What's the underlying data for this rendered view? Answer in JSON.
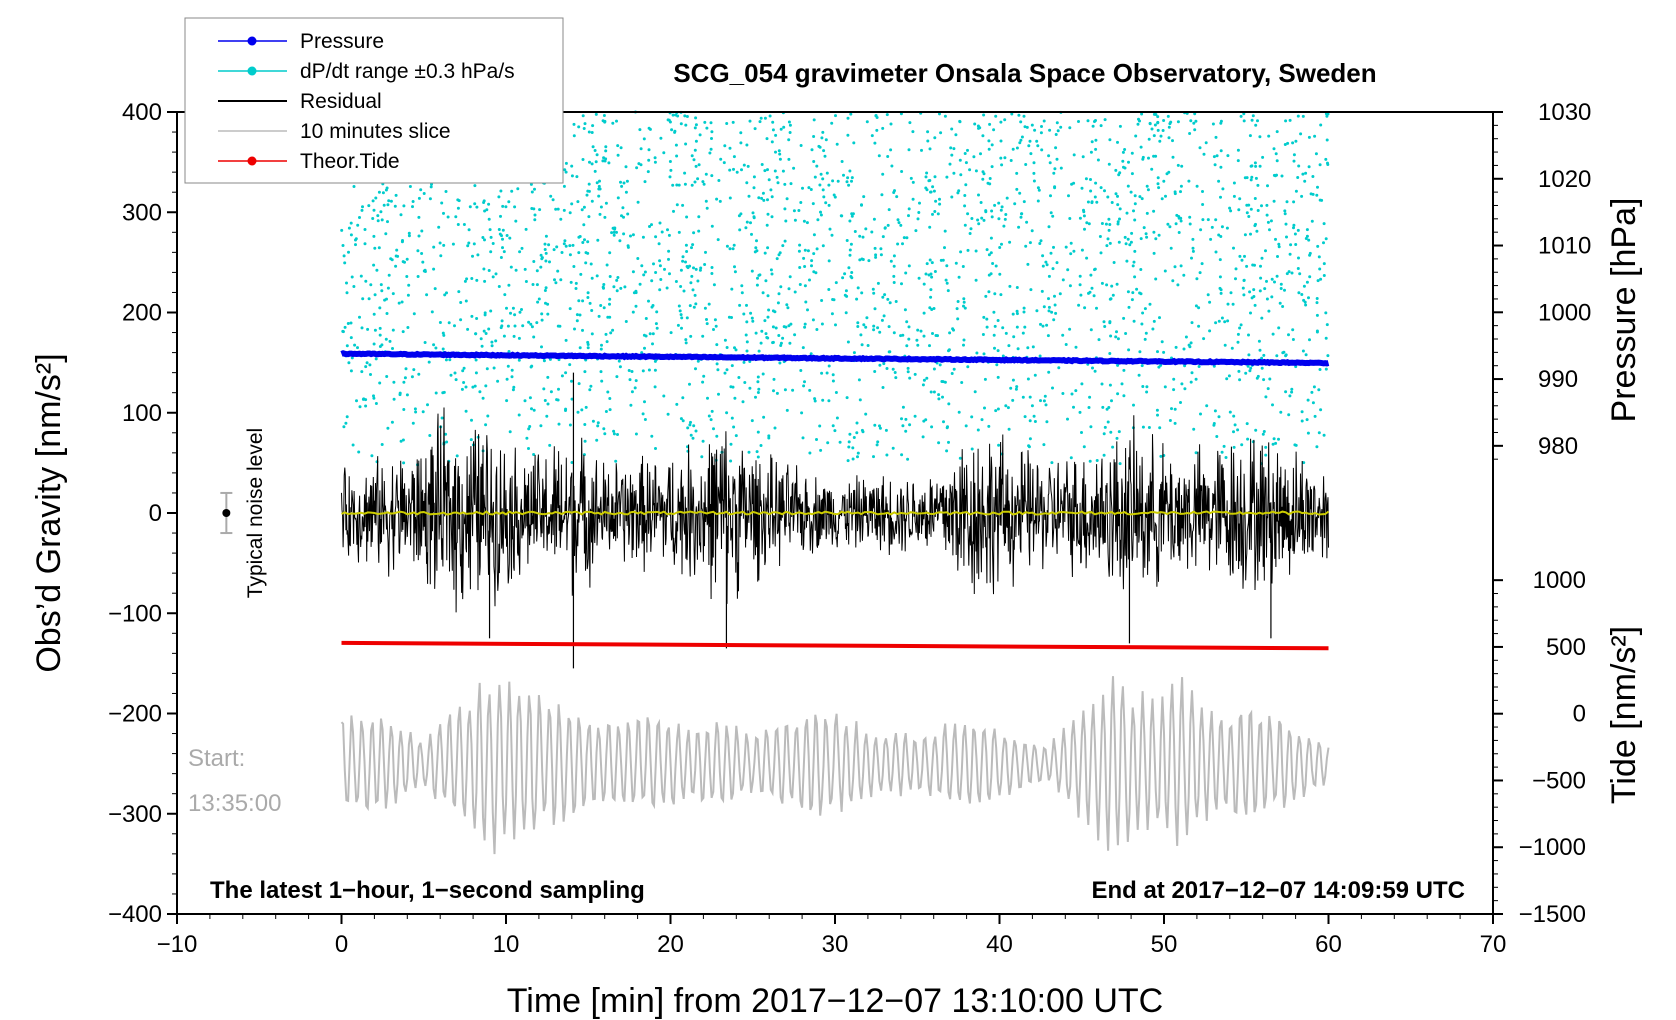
{
  "chart_data": {
    "type": "line",
    "title": "SCG_054 gravimeter Onsala Space Observatory, Sweden",
    "xlabel": "Time [min] from 2017−12−07 13:10:00 UTC",
    "ylabel_left": "Obs’d Gravity [nm/s²]",
    "ylabel_right_pressure": "Pressure [hPa]",
    "ylabel_right_tide": "Tide [nm/s²]",
    "xlim": [
      -10,
      70
    ],
    "ylim": [
      -400,
      400
    ],
    "xticks": [
      -10,
      0,
      10,
      20,
      30,
      40,
      50,
      60,
      70
    ],
    "yticks": [
      -400,
      -300,
      -200,
      -100,
      0,
      100,
      200,
      300,
      400
    ],
    "pressure_axis": {
      "range": [
        970,
        1030
      ],
      "ticks": [
        980,
        990,
        1000,
        1010,
        1020,
        1030
      ]
    },
    "tide_axis": {
      "range": [
        -1500,
        1000
      ],
      "ticks": [
        -1500,
        -1000,
        -500,
        0,
        500,
        1000
      ]
    },
    "legend": [
      {
        "label": "Pressure",
        "color": "#0000ee"
      },
      {
        "label": "dP/dt range ±0.3 hPa/s",
        "color": "#00cccc"
      },
      {
        "label": "Residual",
        "color": "#000000"
      },
      {
        "label": "10 minutes slice",
        "color": "#bbbbbb"
      },
      {
        "label": "Theor.Tide",
        "color": "#ee0000"
      }
    ],
    "legend_position": "top-left",
    "annotations": {
      "bottom_left": "The latest 1−hour, 1−second sampling",
      "bottom_right": "End at 2017−12−07 14:09:59 UTC",
      "slice_start_label": "Start:",
      "slice_start_time": "13:35:00",
      "noise_label": "Typical noise level"
    },
    "series": {
      "pressure": {
        "x": [
          0,
          60
        ],
        "pressure_hPa": [
          993.8,
          992.4
        ],
        "color": "#0000ee"
      },
      "theor_tide": {
        "x": [
          0,
          60
        ],
        "tide_nms2": [
          530,
          490
        ],
        "color": "#ee0000"
      },
      "residual": {
        "color": "#000000",
        "baseline": 0,
        "envelope_x": [
          0,
          5,
          6,
          8,
          9,
          10,
          12,
          14,
          16,
          18,
          20,
          22,
          23,
          24,
          26,
          28,
          30,
          33,
          36,
          38,
          39,
          40,
          42,
          44,
          46,
          48,
          50,
          52,
          55,
          57,
          60
        ],
        "envelope_amp": [
          50,
          80,
          110,
          110,
          100,
          85,
          70,
          95,
          60,
          65,
          70,
          85,
          110,
          95,
          65,
          50,
          40,
          45,
          50,
          100,
          105,
          90,
          70,
          65,
          85,
          100,
          80,
          75,
          95,
          85,
          55
        ],
        "spikes": [
          [
            14.1,
            140
          ],
          [
            14.1,
            -155
          ],
          [
            23.4,
            -135
          ],
          [
            9.0,
            -125
          ],
          [
            47.9,
            -130
          ],
          [
            56.5,
            -125
          ]
        ]
      },
      "trend": {
        "x": [
          0,
          60
        ],
        "value": [
          0,
          0
        ],
        "color": "#cccc00"
      },
      "ten_minute_slice": {
        "color": "#bbbbbb",
        "x_range": [
          0,
          60
        ],
        "baseline": -250,
        "envelope_x": [
          0,
          3,
          5,
          7,
          9,
          11,
          13,
          15,
          17,
          19,
          21,
          23,
          25,
          27,
          29,
          31,
          33,
          35,
          37,
          39,
          41,
          43,
          45,
          47,
          49,
          51,
          53,
          55,
          57,
          60
        ],
        "envelope_amp": [
          55,
          50,
          25,
          60,
          95,
          90,
          65,
          50,
          45,
          55,
          40,
          50,
          30,
          50,
          60,
          45,
          35,
          30,
          45,
          50,
          30,
          20,
          60,
          95,
          70,
          90,
          55,
          60,
          50,
          20
        ]
      },
      "dp_dt_range": {
        "color": "#00cccc",
        "x_range": [
          0,
          60
        ],
        "pressure_range_hPa": [
          977,
          1030
        ],
        "point_count": 2600
      }
    },
    "noise_bar": {
      "x": -7,
      "center": 0,
      "half_range": 20
    },
    "grid": false
  }
}
